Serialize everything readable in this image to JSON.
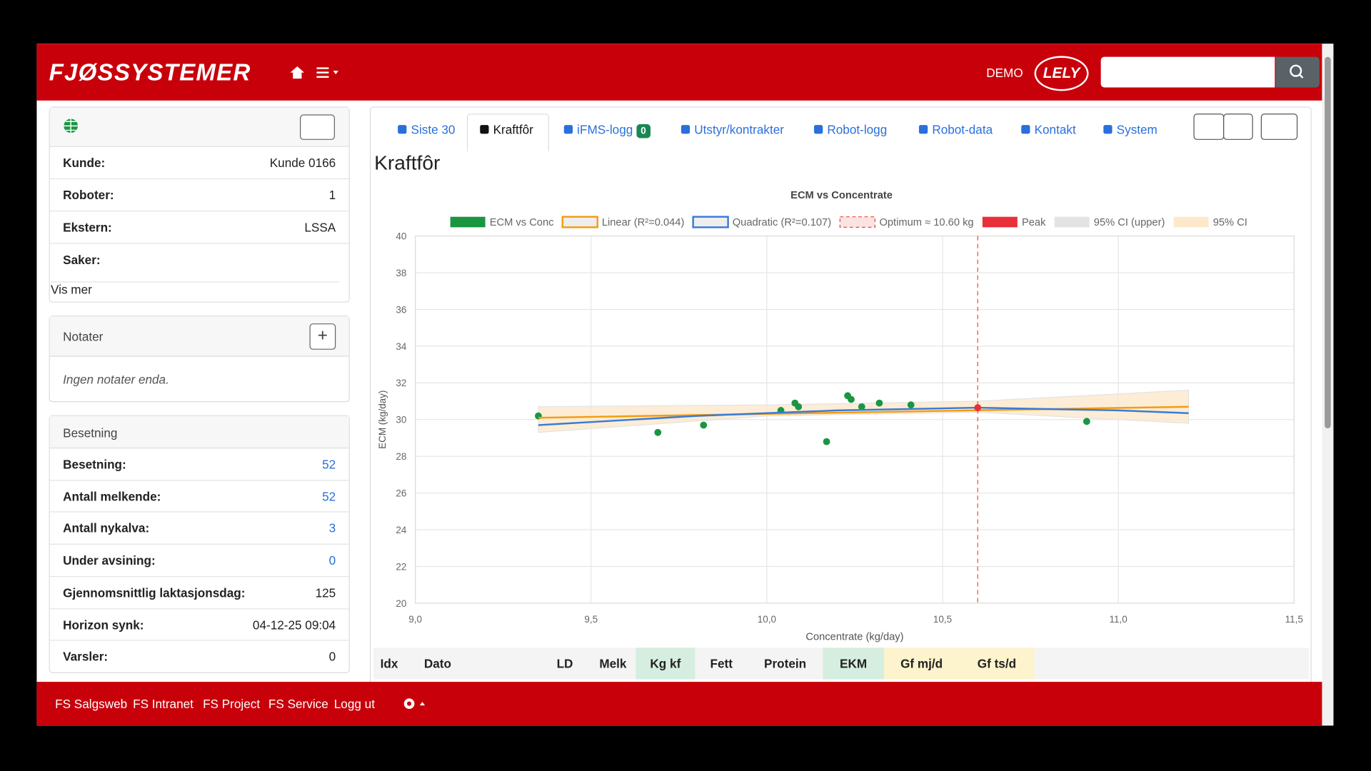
{
  "header": {
    "brand": "FJØSSYSTEMER",
    "demo": "DEMO",
    "logo": "LELY"
  },
  "tabs": [
    "Siste 30",
    "Kraftfôr",
    "iFMS-logg",
    "Utstyr/kontrakter",
    "Robot-logg",
    "Robot-data",
    "Kontakt",
    "System"
  ],
  "ifms_badge": "0",
  "page_title": "Kraftfôr",
  "customer": {
    "rows": [
      {
        "label": "Kunde:",
        "value": "Kunde 0166"
      },
      {
        "label": "Roboter:",
        "value": "1"
      },
      {
        "label": "Ekstern:",
        "value": "LSSA"
      },
      {
        "label": "Saker:"
      }
    ],
    "more": "Vis mer"
  },
  "notes": {
    "title": "Notater",
    "empty": "Ingen notater enda."
  },
  "herd": {
    "title": "Besetning",
    "rows": [
      {
        "label": "Besetning:",
        "value": "52",
        "link": true
      },
      {
        "label": "Antall melkende:",
        "value": "52",
        "link": true
      },
      {
        "label": "Antall nykalva:",
        "value": "3",
        "link": true
      },
      {
        "label": "Under avsining:",
        "value": "0",
        "link": true
      },
      {
        "label": "Gjennomsnittlig laktasjonsdag:",
        "value": "125"
      },
      {
        "label": "Horizon synk:",
        "value": "04-12-25 09:04"
      },
      {
        "label": "Varsler:",
        "value": "0"
      }
    ]
  },
  "table": {
    "columns": [
      "Idx",
      "Dato",
      "LD",
      "Melk",
      "Kg kf",
      "Fett",
      "Protein",
      "EKM",
      "Gf mj/d",
      "Gf ts/d"
    ]
  },
  "footer": {
    "links": [
      "FS Salgsweb",
      "FS Intranet",
      "FS Project",
      "FS Service",
      "Logg ut"
    ]
  },
  "chart_data": {
    "type": "scatter",
    "title": "ECM vs Concentrate",
    "x_label": "Concentrate (kg/day)",
    "y_label": "ECM (kg/day)",
    "xlim": [
      9.0,
      11.5
    ],
    "xticks": [
      {
        "value": 9.0,
        "label": "9,0"
      },
      {
        "value": 9.5,
        "label": "9,5"
      },
      {
        "value": 10.0,
        "label": "10,0"
      },
      {
        "value": 10.5,
        "label": "10,5"
      },
      {
        "value": 11.0,
        "label": "11,0"
      },
      {
        "value": 11.5,
        "label": "11,5"
      }
    ],
    "ylim": [
      20,
      40
    ],
    "yticks": [
      20,
      22,
      24,
      26,
      28,
      30,
      32,
      34,
      36,
      38,
      40
    ],
    "grid": true,
    "series": [
      {
        "name": "ECM vs Conc",
        "kind": "points",
        "color": "#1a9641",
        "x": [
          9.35,
          9.69,
          9.82,
          10.04,
          10.08,
          10.09,
          10.17,
          10.23,
          10.24,
          10.27,
          10.32,
          10.41,
          10.91
        ],
        "values": [
          30.2,
          29.3,
          29.7,
          30.5,
          30.9,
          30.7,
          28.8,
          31.3,
          31.1,
          30.7,
          30.9,
          30.8,
          29.9
        ]
      },
      {
        "name": "Linear (R²=0.044)",
        "kind": "line",
        "color": "#f39c12",
        "x": [
          9.35,
          11.2
        ],
        "values": [
          30.1,
          30.7
        ]
      },
      {
        "name": "Quadratic (R²=0.107)",
        "kind": "line",
        "color": "#3a7bd5",
        "x": [
          9.35,
          9.8,
          10.2,
          10.6,
          11.0,
          11.2
        ],
        "values": [
          29.7,
          30.2,
          30.5,
          30.65,
          30.5,
          30.35
        ]
      },
      {
        "name": "Optimum ≈ 10.60 kg",
        "kind": "vline",
        "color": "#e74c3c",
        "x": [
          10.6
        ]
      },
      {
        "name": "Peak",
        "kind": "points",
        "color": "#e8303a",
        "x": [
          10.6
        ],
        "values": [
          30.65
        ]
      },
      {
        "name": "95% CI (upper)",
        "kind": "band_upper",
        "color": "#e3e3e3",
        "x": [
          9.35,
          10.0,
          10.6,
          11.2
        ],
        "values": [
          30.7,
          30.8,
          31.0,
          31.6
        ]
      },
      {
        "name": "95% CI",
        "kind": "band_lower",
        "color": "#fde8cc",
        "x": [
          9.35,
          10.0,
          10.6,
          11.2
        ],
        "values": [
          29.3,
          30.2,
          30.4,
          29.8
        ]
      }
    ]
  }
}
